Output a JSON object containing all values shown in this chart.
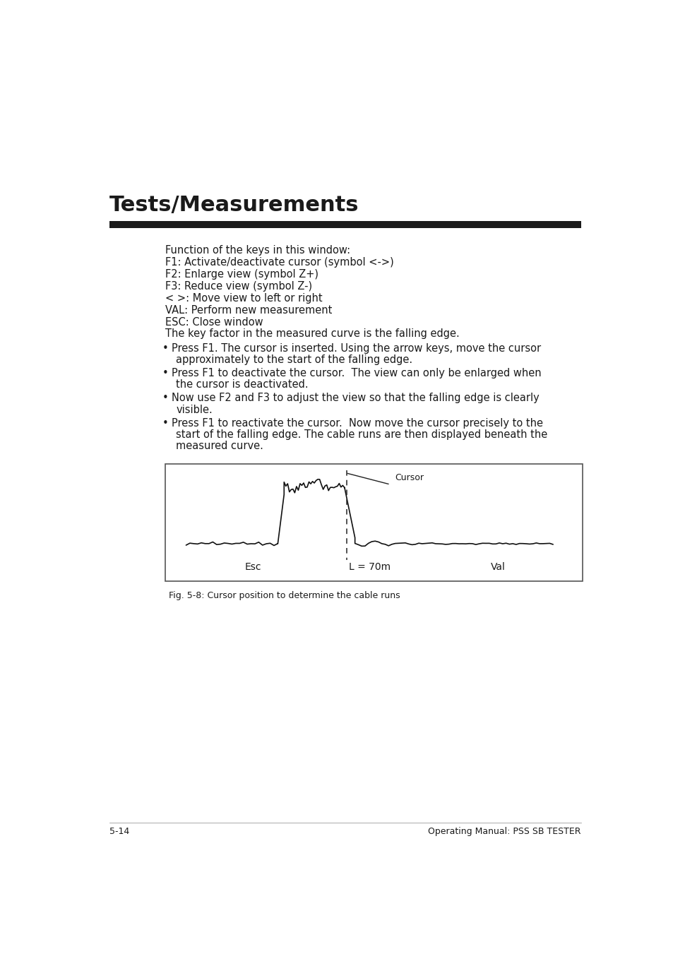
{
  "title": "Tests/Measurements",
  "page_num": "5-14",
  "page_footer": "Operating Manual: PSS SB TESTER",
  "text_lines": [
    "Function of the keys in this window:",
    "F1: Activate/deactivate cursor (symbol <->)",
    "F2: Enlarge view (symbol Z+)",
    "F3: Reduce view (symbol Z-)",
    "< >: Move view to left or right",
    "VAL: Perform new measurement",
    "ESC: Close window",
    "The key factor in the measured curve is the falling edge."
  ],
  "bullet_points": [
    {
      "lines": [
        "Press F1. The cursor is inserted. Using the arrow keys, move the cursor",
        "approximately to the start of the falling edge."
      ]
    },
    {
      "lines": [
        "Press F1 to deactivate the cursor.  The view can only be enlarged when",
        "the cursor is deactivated."
      ]
    },
    {
      "lines": [
        "Now use F2 and F3 to adjust the view so that the falling edge is clearly",
        "visible."
      ]
    },
    {
      "lines": [
        "Press F1 to reactivate the cursor.  Now move the cursor precisely to the",
        "start of the falling edge. The cable runs are then displayed beneath the",
        "measured curve."
      ]
    }
  ],
  "figure_caption": "Fig. 5-8: Cursor position to determine the cable runs",
  "figure_label_cursor": "Cursor",
  "figure_label_esc": "Esc",
  "figure_label_l": "L = 70m",
  "figure_label_val": "Val",
  "bg_color": "#ffffff",
  "title_color": "#1a1a1a",
  "text_color": "#1a1a1a",
  "rule_color": "#1a1a1a",
  "figure_bg": "#ffffff",
  "figure_border": "#555555"
}
